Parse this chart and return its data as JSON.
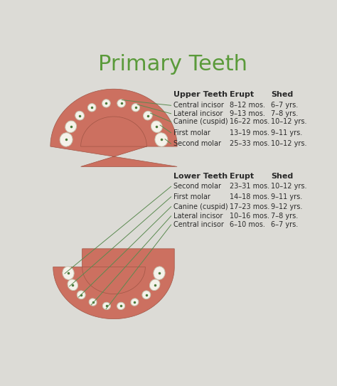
{
  "title": "Primary Teeth",
  "title_color": "#5a9a3a",
  "title_fontsize": 22,
  "bg_color": "#dcdbd6",
  "text_color": "#2a2a2a",
  "line_color": "#5a8a50",
  "upper_header": [
    "Upper Teeth",
    "Erupt",
    "Shed"
  ],
  "upper_rows": [
    [
      "Central incisor",
      "8–12 mos.",
      "6–7 yrs."
    ],
    [
      "Lateral incisor",
      "9–13 mos.",
      "7–8 yrs."
    ],
    [
      "Canine (cuspid)",
      "16–22 mos.",
      "10–12 yrs."
    ],
    [
      "First molar",
      "13–19 mos.",
      "9–11 yrs."
    ],
    [
      "Second molar",
      "25–33 mos.",
      "10–12 yrs."
    ]
  ],
  "lower_header": [
    "Lower Teeth",
    "Erupt",
    "Shed"
  ],
  "lower_rows": [
    [
      "Second molar",
      "23–31 mos.",
      "10–12 yrs."
    ],
    [
      "First molar",
      "14–18 mos.",
      "9–11 yrs."
    ],
    [
      "Canine (cuspid)",
      "17–23 mos.",
      "9–12 yrs."
    ],
    [
      "Lateral incisor",
      "10–16 mos.",
      "7–8 yrs."
    ],
    [
      "Central incisor",
      "6–10 mos.",
      "6–7 yrs."
    ]
  ],
  "gum_color": "#cc7060",
  "gum_inner_color": "#c06858",
  "palate_color": "#d4908a",
  "tooth_color": "#f5f2ea",
  "tooth_edge_color": "#c8c4b0",
  "tongue_color": "#c87870"
}
